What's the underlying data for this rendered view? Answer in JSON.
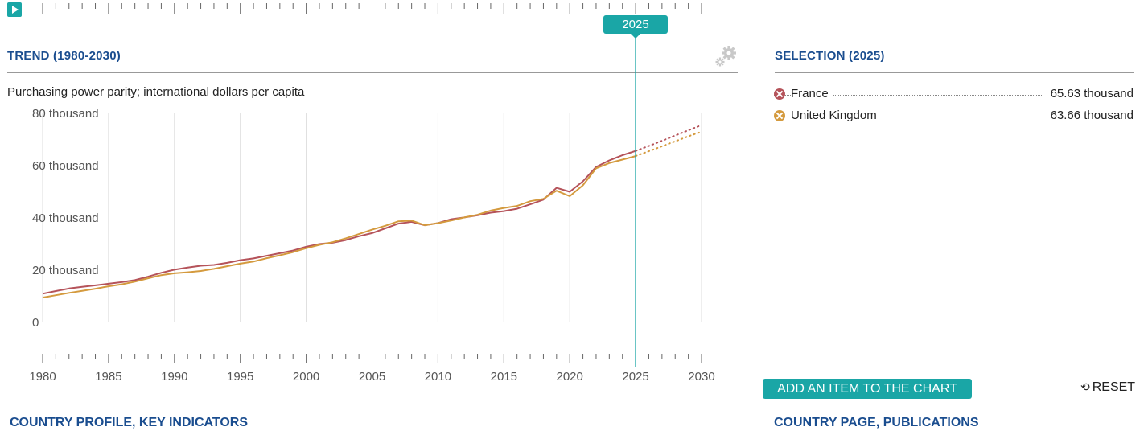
{
  "trend": {
    "title": "TREND (1980-2030)",
    "subtitle": "Purchasing power parity; international dollars per capita"
  },
  "selection": {
    "title": "SELECTION (2025)",
    "items": [
      {
        "name": "France",
        "value": "65.63 thousand",
        "color": "#b5535a"
      },
      {
        "name": "United Kingdom",
        "value": "63.66 thousand",
        "color": "#d49a3e"
      }
    ]
  },
  "timeline": {
    "selected_year": "2025",
    "play_icon": "play-icon"
  },
  "settings_icon": "gear-icon",
  "buttons": {
    "add_item": "ADD AN ITEM TO THE CHART",
    "reset": "RESET",
    "reset_icon": "reset-icon"
  },
  "footer": {
    "left_link": "COUNTRY PROFILE, KEY INDICATORS",
    "right_link": "COUNTRY PAGE, PUBLICATIONS"
  },
  "chart_data": {
    "type": "line",
    "title": "TREND (1980-2030)",
    "ylabel": "Purchasing power parity; international dollars per capita",
    "xlim": [
      1980,
      2030
    ],
    "ylim": [
      0,
      80000
    ],
    "y_ticks": [
      0,
      20000,
      40000,
      60000,
      80000
    ],
    "y_tick_labels": [
      "0",
      "20 thousand",
      "40 thousand",
      "60 thousand",
      "80 thousand"
    ],
    "x_ticks": [
      1980,
      1985,
      1990,
      1995,
      2000,
      2005,
      2010,
      2015,
      2020,
      2025,
      2030
    ],
    "x_tick_labels": [
      "1980",
      "1985",
      "1990",
      "1995",
      "2000",
      "2005",
      "2010",
      "2015",
      "2020",
      "2025",
      "2030"
    ],
    "selected_year": 2025,
    "grid": true,
    "projection_start": 2025,
    "series": [
      {
        "name": "France",
        "color": "#b5535a",
        "x": [
          1980,
          1981,
          1982,
          1983,
          1984,
          1985,
          1986,
          1987,
          1988,
          1989,
          1990,
          1991,
          1992,
          1993,
          1994,
          1995,
          1996,
          1997,
          1998,
          1999,
          2000,
          2001,
          2002,
          2003,
          2004,
          2005,
          2006,
          2007,
          2008,
          2009,
          2010,
          2011,
          2012,
          2013,
          2014,
          2015,
          2016,
          2017,
          2018,
          2019,
          2020,
          2021,
          2022,
          2023,
          2024,
          2025,
          2026,
          2027,
          2028,
          2029,
          2030
        ],
        "values": [
          11000,
          12000,
          13000,
          13600,
          14200,
          14800,
          15400,
          16200,
          17500,
          19000,
          20200,
          21000,
          21700,
          22000,
          22800,
          23800,
          24500,
          25500,
          26500,
          27500,
          29000,
          30000,
          30500,
          31500,
          33000,
          34200,
          36000,
          37800,
          38500,
          37200,
          38000,
          39500,
          40200,
          41000,
          42000,
          42600,
          43500,
          45200,
          47000,
          51500,
          50000,
          54000,
          59500,
          62000,
          64000,
          65630,
          67500,
          69500,
          71500,
          73500,
          75500
        ]
      },
      {
        "name": "United Kingdom",
        "color": "#d49a3e",
        "x": [
          1980,
          1981,
          1982,
          1983,
          1984,
          1985,
          1986,
          1987,
          1988,
          1989,
          1990,
          1991,
          1992,
          1993,
          1994,
          1995,
          1996,
          1997,
          1998,
          1999,
          2000,
          2001,
          2002,
          2003,
          2004,
          2005,
          2006,
          2007,
          2008,
          2009,
          2010,
          2011,
          2012,
          2013,
          2014,
          2015,
          2016,
          2017,
          2018,
          2019,
          2020,
          2021,
          2022,
          2023,
          2024,
          2025,
          2026,
          2027,
          2028,
          2029,
          2030
        ],
        "values": [
          9500,
          10400,
          11300,
          12100,
          12900,
          13800,
          14600,
          15600,
          16900,
          18100,
          18800,
          19200,
          19700,
          20500,
          21500,
          22500,
          23300,
          24600,
          25700,
          26900,
          28400,
          29700,
          30700,
          32200,
          33800,
          35500,
          37000,
          38700,
          39000,
          37200,
          38000,
          39000,
          40200,
          41200,
          42800,
          43800,
          44600,
          46400,
          47300,
          50400,
          48300,
          52500,
          59000,
          61000,
          62300,
          63660,
          65500,
          67400,
          69300,
          71200,
          73000
        ]
      }
    ]
  }
}
